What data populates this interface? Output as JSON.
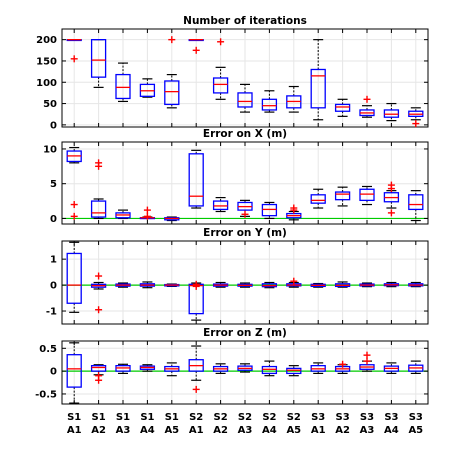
{
  "chart_data": [
    {
      "type": "box",
      "title": "Number of iterations",
      "categories": [
        "S1 A1",
        "S1 A2",
        "S1 A3",
        "S1 A4",
        "S1 A5",
        "S2 A1",
        "S2 A2",
        "S2 A3",
        "S2 A4",
        "S2 A5",
        "S3 A1",
        "S3 A2",
        "S3 A3",
        "S3 A4",
        "S3 A5"
      ],
      "ylim": [
        -5,
        225
      ],
      "yticks": [
        0,
        50,
        100,
        150,
        200
      ],
      "grid": true,
      "reference_line": null,
      "boxes": [
        {
          "whisker_low": 200,
          "q1": 200,
          "median": 200,
          "q3": 200,
          "whisker_high": 200,
          "outliers": [
            155
          ]
        },
        {
          "whisker_low": 88,
          "q1": 112,
          "median": 152,
          "q3": 200,
          "whisker_high": 200,
          "outliers": []
        },
        {
          "whisker_low": 55,
          "q1": 62,
          "median": 88,
          "q3": 118,
          "whisker_high": 145,
          "outliers": []
        },
        {
          "whisker_low": 65,
          "q1": 67,
          "median": 80,
          "q3": 95,
          "whisker_high": 108,
          "outliers": []
        },
        {
          "whisker_low": 40,
          "q1": 48,
          "median": 78,
          "q3": 103,
          "whisker_high": 118,
          "outliers": [
            200
          ]
        },
        {
          "whisker_low": 200,
          "q1": 200,
          "median": 200,
          "q3": 200,
          "whisker_high": 200,
          "outliers": [
            175
          ]
        },
        {
          "whisker_low": 60,
          "q1": 75,
          "median": 95,
          "q3": 110,
          "whisker_high": 135,
          "outliers": [
            195
          ]
        },
        {
          "whisker_low": 30,
          "q1": 42,
          "median": 55,
          "q3": 75,
          "whisker_high": 95,
          "outliers": []
        },
        {
          "whisker_low": 30,
          "q1": 35,
          "median": 45,
          "q3": 60,
          "whisker_high": 80,
          "outliers": []
        },
        {
          "whisker_low": 30,
          "q1": 40,
          "median": 55,
          "q3": 68,
          "whisker_high": 90,
          "outliers": []
        },
        {
          "whisker_low": 12,
          "q1": 40,
          "median": 115,
          "q3": 130,
          "whisker_high": 200,
          "outliers": []
        },
        {
          "whisker_low": 20,
          "q1": 32,
          "median": 42,
          "q3": 48,
          "whisker_high": 60,
          "outliers": []
        },
        {
          "whisker_low": 18,
          "q1": 22,
          "median": 28,
          "q3": 35,
          "whisker_high": 45,
          "outliers": [
            60
          ]
        },
        {
          "whisker_low": 10,
          "q1": 18,
          "median": 25,
          "q3": 35,
          "whisker_high": 50,
          "outliers": []
        },
        {
          "whisker_low": 12,
          "q1": 20,
          "median": 25,
          "q3": 32,
          "whisker_high": 40,
          "outliers": [
            3
          ]
        }
      ]
    },
    {
      "type": "box",
      "title": "Error on X (m)",
      "categories": [
        "S1 A1",
        "S1 A2",
        "S1 A3",
        "S1 A4",
        "S1 A5",
        "S2 A1",
        "S2 A2",
        "S2 A3",
        "S2 A4",
        "S2 A5",
        "S3 A1",
        "S3 A2",
        "S3 A3",
        "S3 A4",
        "S3 A5"
      ],
      "ylim": [
        -0.8,
        11
      ],
      "yticks": [
        0,
        5,
        10
      ],
      "grid": true,
      "reference_line": 0,
      "boxes": [
        {
          "whisker_low": 8.0,
          "q1": 8.2,
          "median": 9.0,
          "q3": 9.7,
          "whisker_high": 10.2,
          "outliers": [
            2.0,
            0.3
          ]
        },
        {
          "whisker_low": 0.0,
          "q1": 0.2,
          "median": 0.8,
          "q3": 2.5,
          "whisker_high": 2.8,
          "outliers": [
            8.0,
            7.5
          ]
        },
        {
          "whisker_low": 0.0,
          "q1": 0.1,
          "median": 0.5,
          "q3": 0.8,
          "whisker_high": 1.2,
          "outliers": []
        },
        {
          "whisker_low": 0.0,
          "q1": 0.0,
          "median": 0.1,
          "q3": 0.1,
          "whisker_high": 0.2,
          "outliers": [
            1.2,
            0.3
          ]
        },
        {
          "whisker_low": -0.3,
          "q1": -0.2,
          "median": 0.0,
          "q3": 0.1,
          "whisker_high": 0.2,
          "outliers": []
        },
        {
          "whisker_low": 1.5,
          "q1": 1.8,
          "median": 3.2,
          "q3": 9.3,
          "whisker_high": 9.8,
          "outliers": []
        },
        {
          "whisker_low": 1.0,
          "q1": 1.3,
          "median": 1.8,
          "q3": 2.5,
          "whisker_high": 3.0,
          "outliers": []
        },
        {
          "whisker_low": 0.3,
          "q1": 1.2,
          "median": 1.7,
          "q3": 2.3,
          "whisker_high": 2.6,
          "outliers": [
            0.6
          ]
        },
        {
          "whisker_low": 0.0,
          "q1": 0.4,
          "median": 1.3,
          "q3": 2.0,
          "whisker_high": 2.3,
          "outliers": []
        },
        {
          "whisker_low": -0.2,
          "q1": 0.1,
          "median": 0.4,
          "q3": 0.7,
          "whisker_high": 1.0,
          "outliers": [
            1.5,
            1.2
          ]
        },
        {
          "whisker_low": 1.5,
          "q1": 2.2,
          "median": 2.6,
          "q3": 3.4,
          "whisker_high": 4.2,
          "outliers": []
        },
        {
          "whisker_low": 1.8,
          "q1": 2.7,
          "median": 3.5,
          "q3": 3.8,
          "whisker_high": 4.5,
          "outliers": []
        },
        {
          "whisker_low": 2.0,
          "q1": 2.6,
          "median": 3.5,
          "q3": 4.2,
          "whisker_high": 4.6,
          "outliers": []
        },
        {
          "whisker_low": 1.5,
          "q1": 2.4,
          "median": 3.0,
          "q3": 3.7,
          "whisker_high": 4.0,
          "outliers": [
            0.8,
            4.8,
            4.3
          ]
        },
        {
          "whisker_low": -0.3,
          "q1": 1.3,
          "median": 2.0,
          "q3": 3.4,
          "whisker_high": 4.0,
          "outliers": []
        }
      ]
    },
    {
      "type": "box",
      "title": "Error on Y (m)",
      "categories": [
        "S1 A1",
        "S1 A2",
        "S1 A3",
        "S1 A4",
        "S1 A5",
        "S2 A1",
        "S2 A2",
        "S2 A3",
        "S2 A4",
        "S2 A5",
        "S3 A1",
        "S3 A2",
        "S3 A3",
        "S3 A4",
        "S3 A5"
      ],
      "ylim": [
        -1.5,
        1.7
      ],
      "yticks": [
        -1,
        0,
        1
      ],
      "grid": true,
      "reference_line": 0,
      "boxes": [
        {
          "whisker_low": -1.05,
          "q1": -0.7,
          "median": 0.0,
          "q3": 1.22,
          "whisker_high": 1.65,
          "outliers": []
        },
        {
          "whisker_low": -0.15,
          "q1": -0.08,
          "median": -0.02,
          "q3": 0.03,
          "whisker_high": 0.1,
          "outliers": [
            0.35,
            -0.95
          ]
        },
        {
          "whisker_low": -0.08,
          "q1": -0.04,
          "median": 0.0,
          "q3": 0.04,
          "whisker_high": 0.08,
          "outliers": []
        },
        {
          "whisker_low": -0.1,
          "q1": -0.04,
          "median": 0.0,
          "q3": 0.05,
          "whisker_high": 0.12,
          "outliers": []
        },
        {
          "whisker_low": -0.05,
          "q1": -0.03,
          "median": 0.0,
          "q3": 0.02,
          "whisker_high": 0.04,
          "outliers": []
        },
        {
          "whisker_low": -1.35,
          "q1": -1.1,
          "median": -0.02,
          "q3": 0.03,
          "whisker_high": 0.08,
          "outliers": [
            -0.05,
            0.03
          ]
        },
        {
          "whisker_low": -0.08,
          "q1": -0.04,
          "median": 0.0,
          "q3": 0.04,
          "whisker_high": 0.1,
          "outliers": []
        },
        {
          "whisker_low": -0.08,
          "q1": -0.04,
          "median": -0.01,
          "q3": 0.03,
          "whisker_high": 0.08,
          "outliers": []
        },
        {
          "whisker_low": -0.1,
          "q1": -0.06,
          "median": -0.02,
          "q3": 0.05,
          "whisker_high": 0.1,
          "outliers": []
        },
        {
          "whisker_low": -0.08,
          "q1": -0.03,
          "median": 0.0,
          "q3": 0.05,
          "whisker_high": 0.1,
          "outliers": [
            0.15
          ]
        },
        {
          "whisker_low": -0.08,
          "q1": -0.05,
          "median": -0.01,
          "q3": 0.03,
          "whisker_high": 0.06,
          "outliers": []
        },
        {
          "whisker_low": -0.08,
          "q1": -0.05,
          "median": -0.01,
          "q3": 0.05,
          "whisker_high": 0.12,
          "outliers": []
        },
        {
          "whisker_low": -0.06,
          "q1": -0.03,
          "median": 0.0,
          "q3": 0.04,
          "whisker_high": 0.08,
          "outliers": []
        },
        {
          "whisker_low": -0.06,
          "q1": -0.02,
          "median": 0.01,
          "q3": 0.05,
          "whisker_high": 0.1,
          "outliers": []
        },
        {
          "whisker_low": -0.06,
          "q1": -0.03,
          "median": 0.0,
          "q3": 0.05,
          "whisker_high": 0.1,
          "outliers": []
        }
      ]
    },
    {
      "type": "box",
      "title": "Error on Z (m)",
      "categories": [
        "S1 A1",
        "S1 A2",
        "S1 A3",
        "S1 A4",
        "S1 A5",
        "S2 A1",
        "S2 A2",
        "S2 A3",
        "S2 A4",
        "S2 A5",
        "S3 A1",
        "S3 A2",
        "S3 A3",
        "S3 A4",
        "S3 A5"
      ],
      "ylim": [
        -0.72,
        0.66
      ],
      "yticks": [
        -0.5,
        0,
        0.5
      ],
      "grid": true,
      "reference_line": 0,
      "boxes": [
        {
          "whisker_low": -0.7,
          "q1": -0.35,
          "median": 0.05,
          "q3": 0.36,
          "whisker_high": 0.62,
          "outliers": []
        },
        {
          "whisker_low": -0.08,
          "q1": 0.0,
          "median": 0.08,
          "q3": 0.12,
          "whisker_high": 0.14,
          "outliers": [
            -0.1,
            -0.2
          ]
        },
        {
          "whisker_low": -0.05,
          "q1": 0.0,
          "median": 0.07,
          "q3": 0.12,
          "whisker_high": 0.15,
          "outliers": []
        },
        {
          "whisker_low": 0.0,
          "q1": 0.04,
          "median": 0.08,
          "q3": 0.11,
          "whisker_high": 0.14,
          "outliers": []
        },
        {
          "whisker_low": -0.1,
          "q1": 0.0,
          "median": 0.05,
          "q3": 0.1,
          "whisker_high": 0.18,
          "outliers": []
        },
        {
          "whisker_low": -0.2,
          "q1": 0.0,
          "median": 0.12,
          "q3": 0.25,
          "whisker_high": 0.55,
          "outliers": [
            -0.4
          ]
        },
        {
          "whisker_low": -0.05,
          "q1": 0.0,
          "median": 0.05,
          "q3": 0.1,
          "whisker_high": 0.16,
          "outliers": []
        },
        {
          "whisker_low": -0.02,
          "q1": 0.02,
          "median": 0.06,
          "q3": 0.11,
          "whisker_high": 0.16,
          "outliers": []
        },
        {
          "whisker_low": -0.1,
          "q1": -0.05,
          "median": 0.04,
          "q3": 0.1,
          "whisker_high": 0.22,
          "outliers": []
        },
        {
          "whisker_low": -0.1,
          "q1": -0.05,
          "median": 0.02,
          "q3": 0.06,
          "whisker_high": 0.12,
          "outliers": []
        },
        {
          "whisker_low": -0.05,
          "q1": 0.0,
          "median": 0.05,
          "q3": 0.12,
          "whisker_high": 0.18,
          "outliers": []
        },
        {
          "whisker_low": -0.05,
          "q1": 0.0,
          "median": 0.05,
          "q3": 0.1,
          "whisker_high": 0.14,
          "outliers": [
            0.15
          ]
        },
        {
          "whisker_low": 0.0,
          "q1": 0.04,
          "median": 0.09,
          "q3": 0.14,
          "whisker_high": 0.22,
          "outliers": [
            0.35,
            0.22
          ]
        },
        {
          "whisker_low": -0.05,
          "q1": 0.0,
          "median": 0.06,
          "q3": 0.11,
          "whisker_high": 0.18,
          "outliers": []
        },
        {
          "whisker_low": -0.05,
          "q1": 0.0,
          "median": 0.07,
          "q3": 0.13,
          "whisker_high": 0.22,
          "outliers": []
        }
      ]
    }
  ],
  "x_tick_labels": [
    {
      "line1": "S1",
      "line2": "A1"
    },
    {
      "line1": "S1",
      "line2": "A2"
    },
    {
      "line1": "S1",
      "line2": "A3"
    },
    {
      "line1": "S1",
      "line2": "A4"
    },
    {
      "line1": "S1",
      "line2": "A5"
    },
    {
      "line1": "S2",
      "line2": "A1"
    },
    {
      "line1": "S2",
      "line2": "A2"
    },
    {
      "line1": "S2",
      "line2": "A3"
    },
    {
      "line1": "S2",
      "line2": "A4"
    },
    {
      "line1": "S2",
      "line2": "A5"
    },
    {
      "line1": "S3",
      "line2": "A1"
    },
    {
      "line1": "S3",
      "line2": "A2"
    },
    {
      "line1": "S3",
      "line2": "A3"
    },
    {
      "line1": "S3",
      "line2": "A4"
    },
    {
      "line1": "S3",
      "line2": "A5"
    }
  ],
  "colors": {
    "box": "#0000ff",
    "median": "#ff0000",
    "outlier": "#ff0000",
    "whisker": "#000000",
    "reference_line": "#00cc00",
    "grid": "#e6e6e6",
    "axes": "#000000"
  }
}
